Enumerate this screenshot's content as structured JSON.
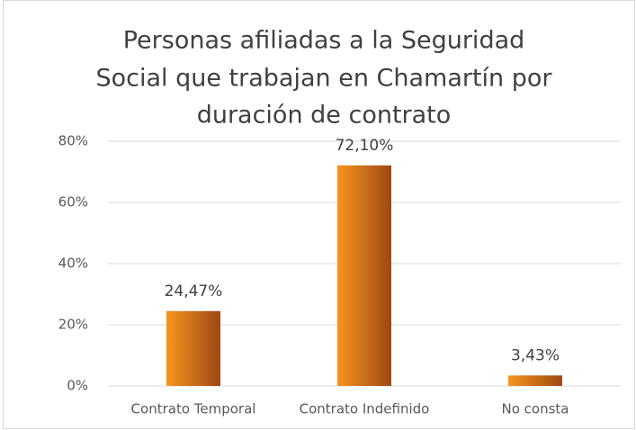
{
  "chart_data": {
    "type": "bar",
    "title": [
      "Personas afiliadas a la Seguridad",
      "Social que trabajan en Chamartín por",
      "duración  de contrato"
    ],
    "categories": [
      "Contrato Temporal",
      "Contrato Indefinido",
      "No consta"
    ],
    "values": [
      24.47,
      72.1,
      3.43
    ],
    "value_labels": [
      "24,47%",
      "72,10%",
      "3,43%"
    ],
    "color": [
      "#f8941e",
      "#9e4812"
    ],
    "ylim": [
      0,
      80
    ],
    "yticks": [
      {
        "value": 0,
        "label": "0%"
      },
      {
        "value": 20,
        "label": "20%"
      },
      {
        "value": 40,
        "label": "40%"
      },
      {
        "value": 60,
        "label": "60%"
      },
      {
        "value": 80,
        "label": "80%"
      }
    ],
    "grid": true
  }
}
